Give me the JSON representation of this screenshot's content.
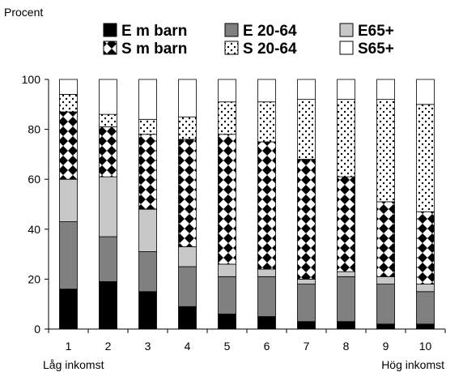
{
  "chart_data": {
    "type": "bar",
    "stacked": true,
    "ylabel": "Procent",
    "ylim": [
      0,
      100
    ],
    "yticks": [
      0,
      20,
      40,
      60,
      80,
      100
    ],
    "categories": [
      "1",
      "2",
      "3",
      "4",
      "5",
      "6",
      "7",
      "8",
      "9",
      "10"
    ],
    "x_notes": {
      "low": "Låg inkomst",
      "high": "Hög inkomst"
    },
    "legend_position": "top",
    "series": [
      {
        "name": "E m barn",
        "pattern": "solid-black",
        "values": [
          16,
          19,
          15,
          9,
          6,
          5,
          3,
          3,
          2,
          2
        ]
      },
      {
        "name": "E 20-64",
        "pattern": "solid-darkgray",
        "values": [
          27,
          18,
          16,
          16,
          15,
          16,
          15,
          18,
          16,
          13
        ]
      },
      {
        "name": "E65+",
        "pattern": "solid-lightgray",
        "values": [
          17,
          24,
          17,
          8,
          5,
          3,
          2,
          2,
          3,
          3
        ]
      },
      {
        "name": "S m barn",
        "pattern": "diamonds",
        "values": [
          27,
          20,
          30,
          43,
          52,
          51,
          48,
          38,
          30,
          29
        ]
      },
      {
        "name": "S 20-64",
        "pattern": "dots",
        "values": [
          7,
          5,
          6,
          9,
          13,
          16,
          24,
          31,
          41,
          43
        ]
      },
      {
        "name": "S65+",
        "pattern": "white",
        "values": [
          6,
          14,
          16,
          15,
          9,
          9,
          8,
          8,
          8,
          10
        ]
      }
    ],
    "colors": {
      "e_m_barn": "#000000",
      "e_20_64": "#808080",
      "e65": "#c8c8c8",
      "s65": "#ffffff"
    }
  }
}
